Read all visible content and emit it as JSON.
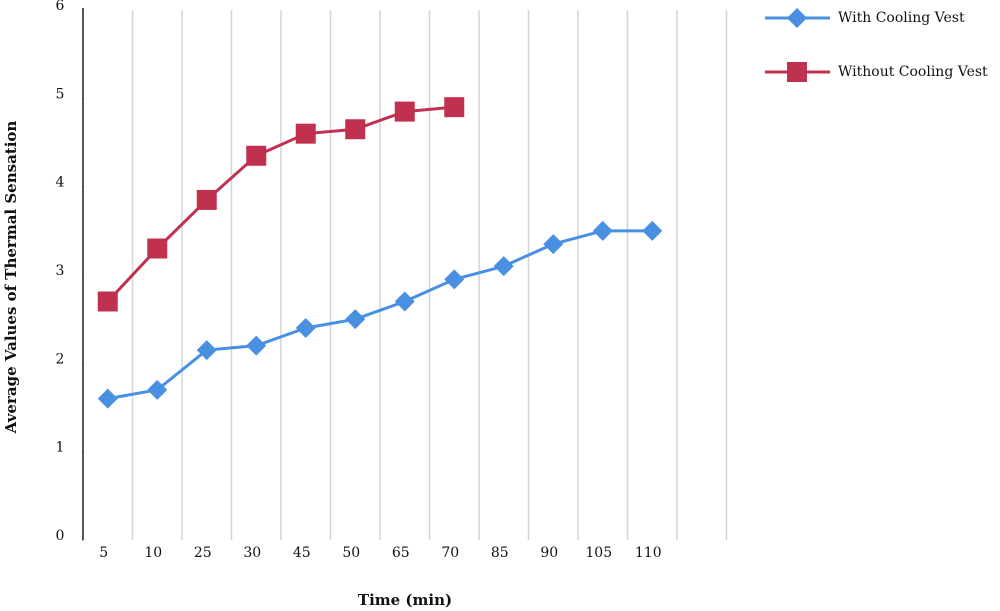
{
  "chart_data": {
    "type": "line",
    "x_label": "Time (min)",
    "y_label": "Average Values of Thermal Sensation",
    "categories": [
      "5",
      "10",
      "25",
      "30",
      "45",
      "50",
      "65",
      "70",
      "85",
      "90",
      "105",
      "110",
      null
    ],
    "series": [
      {
        "name": "With Cooling Vest",
        "color": "#4a90e2",
        "marker": "diamond",
        "values": [
          1.6,
          1.7,
          2.15,
          2.2,
          2.4,
          2.5,
          2.7,
          2.95,
          3.1,
          3.35,
          3.5,
          3.5,
          null
        ]
      },
      {
        "name": "Without Cooling Vest",
        "color": "#c0314f",
        "marker": "square",
        "values": [
          2.7,
          3.3,
          3.85,
          4.35,
          4.6,
          4.65,
          4.85,
          4.9,
          null,
          null,
          null,
          null,
          null
        ]
      }
    ],
    "ylim": [
      0,
      6
    ],
    "yticks": [
      0,
      1,
      2,
      3,
      4,
      5,
      6
    ],
    "grid": true,
    "legend": "right"
  }
}
